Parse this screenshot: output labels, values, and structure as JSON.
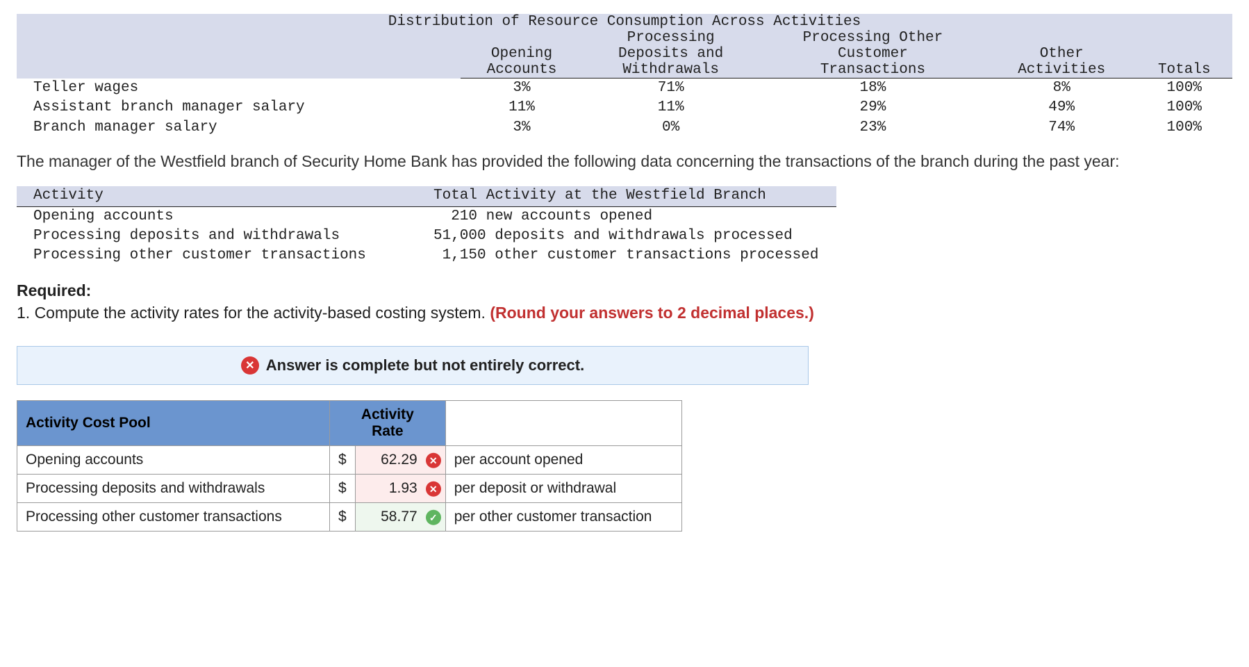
{
  "dist": {
    "caption": "Distribution of Resource Consumption Across Activities",
    "headers": {
      "c1": "Opening\nAccounts",
      "c2": "Processing\nDeposits and\nWithdrawals",
      "c3": "Processing Other\nCustomer\nTransactions",
      "c4": "Other\nActivities",
      "c5": "Totals"
    },
    "rows": [
      {
        "label": "Teller wages",
        "c1": "3%",
        "c2": "71%",
        "c3": "18%",
        "c4": "8%",
        "c5": "100%"
      },
      {
        "label": "Assistant branch manager salary",
        "c1": "11%",
        "c2": "11%",
        "c3": "29%",
        "c4": "49%",
        "c5": "100%"
      },
      {
        "label": "Branch manager salary",
        "c1": "3%",
        "c2": "0%",
        "c3": "23%",
        "c4": "74%",
        "c5": "100%"
      }
    ]
  },
  "paragraph": "The manager of the Westfield branch of Security Home Bank has provided the following data concerning the transactions of the branch during the past year:",
  "activity": {
    "h1": "Activity",
    "h2": "Total Activity at the Westfield Branch",
    "rows": [
      {
        "a": "Opening accounts",
        "t": "  210 new accounts opened"
      },
      {
        "a": "Processing deposits and withdrawals",
        "t": "51,000 deposits and withdrawals processed"
      },
      {
        "a": "Processing other customer transactions",
        "t": " 1,150 other customer transactions processed"
      }
    ]
  },
  "required": {
    "label": "Required:",
    "q": "1. Compute the activity rates for the activity-based costing system. ",
    "hint": "(Round your answers to 2 decimal places.)"
  },
  "feedback": "Answer is complete but not entirely correct.",
  "answer": {
    "h_pool": "Activity Cost Pool",
    "h_rate": "Activity\nRate",
    "currency": "$",
    "rows": [
      {
        "pool": "Opening accounts",
        "rate": "62.29",
        "correct": false,
        "unit": "per account opened"
      },
      {
        "pool": "Processing deposits and withdrawals",
        "rate": "1.93",
        "correct": false,
        "unit": "per deposit or withdrawal"
      },
      {
        "pool": "Processing other customer transactions",
        "rate": "58.77",
        "correct": true,
        "unit": "per other customer transaction"
      }
    ]
  },
  "colors": {
    "header_bg": "#d7dbeb",
    "banner_bg": "#e9f2fc",
    "banner_border": "#a9c8e8",
    "blue_header": "#6b95cf",
    "wrong_bg": "#fdecec",
    "right_bg": "#eef7ee",
    "wrong_icon": "#d93636",
    "right_icon": "#5fb560",
    "red_text": "#c13030"
  }
}
